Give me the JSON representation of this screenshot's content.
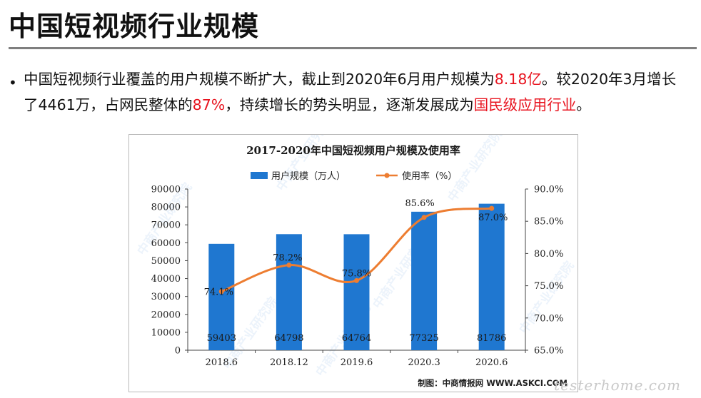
{
  "slide": {
    "title": "中国短视频行业规模",
    "bullet": {
      "t1": "中国短视频行业覆盖的用户规模不断扩大，截止到2020年6月用户规模为",
      "h1": "8.18亿",
      "t2": "。较2020年3月增长了4461万，占网民整体的",
      "h2": "87%",
      "t3": "，持续增长的势头明显，逐渐发展成为",
      "h3": "国民级应用行业",
      "t4": "。"
    },
    "watermark": "testerhome.com"
  },
  "chart_data": {
    "type": "bar",
    "title": "2017-2020年中国短视频用户规模及使用率",
    "categories": [
      "2018.6",
      "2018.12",
      "2019.6",
      "2020.3",
      "2020.6"
    ],
    "series": [
      {
        "name": "用户规模（万人）",
        "type": "bar",
        "axis": "left",
        "values": [
          59403,
          64798,
          64764,
          77325,
          81786
        ],
        "labels": [
          "59403",
          "64798",
          "64764",
          "77325",
          "81786"
        ],
        "color": "#1f77d0"
      },
      {
        "name": "使用率（%）",
        "type": "line",
        "axis": "right",
        "values": [
          74.1,
          78.2,
          75.8,
          85.6,
          87.0
        ],
        "labels": [
          "74.1%",
          "78.2%",
          "75.8%",
          "85.6%",
          "87.0%"
        ],
        "color": "#ed7d31"
      }
    ],
    "y_left": {
      "range": [
        0,
        90000
      ],
      "ticks": [
        "0",
        "10000",
        "20000",
        "30000",
        "40000",
        "50000",
        "60000",
        "70000",
        "80000",
        "90000"
      ]
    },
    "y_right": {
      "range": [
        65,
        90
      ],
      "ticks": [
        "65.0%",
        "70.0%",
        "75.0%",
        "80.0%",
        "85.0%",
        "90.0%"
      ]
    },
    "legend_position": "top",
    "grid": false,
    "source": "制图：中商情报网 WWW.ASKCI.COM",
    "watermark_text": "中商产业研究院"
  }
}
